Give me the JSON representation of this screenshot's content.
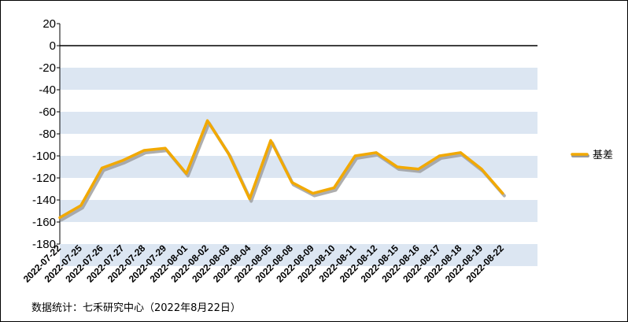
{
  "chart_data": {
    "type": "line",
    "categories": [
      "2022-07-22",
      "2022-07-25",
      "2022-07-26",
      "2022-07-27",
      "2022-07-28",
      "2022-07-29",
      "2022-08-01",
      "2022-08-02",
      "2022-08-03",
      "2022-08-04",
      "2022-08-05",
      "2022-08-08",
      "2022-08-09",
      "2022-08-10",
      "2022-08-11",
      "2022-08-12",
      "2022-08-15",
      "2022-08-16",
      "2022-08-17",
      "2022-08-18",
      "2022-08-19",
      "2022-08-22"
    ],
    "series": [
      {
        "name": "基差",
        "values": [
          -156,
          -145,
          -111,
          -104,
          -95,
          -93,
          -116,
          -68,
          -98,
          -139,
          -86,
          -124,
          -134,
          -129,
          -100,
          -97,
          -110,
          -112,
          -100,
          -97,
          -112,
          -134
        ]
      }
    ],
    "ylim": [
      -180,
      20
    ],
    "yticks": [
      20,
      0,
      -20,
      -40,
      -60,
      -80,
      -100,
      -120,
      -140,
      -160,
      -180
    ],
    "legend_position": "right",
    "line_color": "#F2A900",
    "shadow_color": "#9A9A9A",
    "band_color": "#DCE6F2"
  },
  "source_note": "数据统计：七禾研究中心（2022年8月22日）"
}
